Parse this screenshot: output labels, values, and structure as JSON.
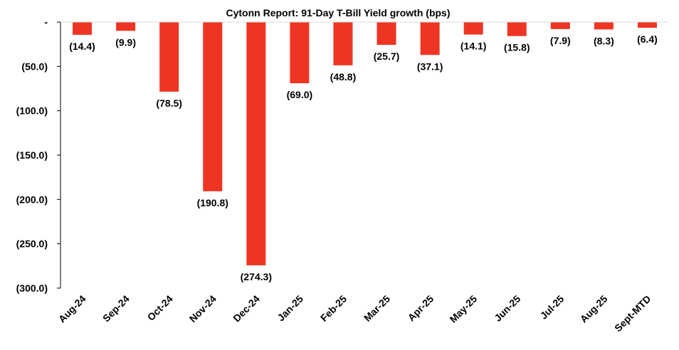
{
  "chart_data": {
    "type": "bar",
    "title": "Cytonn Report:  91-Day T-Bill Yield growth (bps)",
    "categories": [
      "Aug-24",
      "Sep-24",
      "Oct-24",
      "Nov-24",
      "Dec-24",
      "Jan-25",
      "Feb-25",
      "Mar-25",
      "Apr-25",
      "May-25",
      "Jun-25",
      "Jul-25",
      "Aug-25",
      "Sept-MTD"
    ],
    "values": [
      -14.4,
      -9.9,
      -78.5,
      -190.8,
      -274.3,
      -69.0,
      -48.8,
      -25.7,
      -37.1,
      -14.1,
      -15.8,
      -7.9,
      -8.3,
      -6.4
    ],
    "data_labels": [
      "(14.4)",
      "(9.9)",
      "(78.5)",
      "(190.8)",
      "(274.3)",
      "(69.0)",
      "(48.8)",
      "(25.7)",
      "(37.1)",
      "(14.1)",
      "(15.8)",
      "(7.9)",
      "(8.3)",
      "(6.4)"
    ],
    "y_ticks": [
      0,
      -50,
      -100,
      -150,
      -200,
      -250,
      -300
    ],
    "y_tick_labels": [
      "-",
      "(50.0)",
      "(100.0)",
      "(150.0)",
      "(200.0)",
      "(250.0)",
      "(300.0)"
    ],
    "ylim": [
      -300,
      0
    ],
    "xlabel": "",
    "ylabel": "",
    "grid": false,
    "colors": {
      "bar": "#EE3524",
      "axis": "#000000"
    }
  }
}
